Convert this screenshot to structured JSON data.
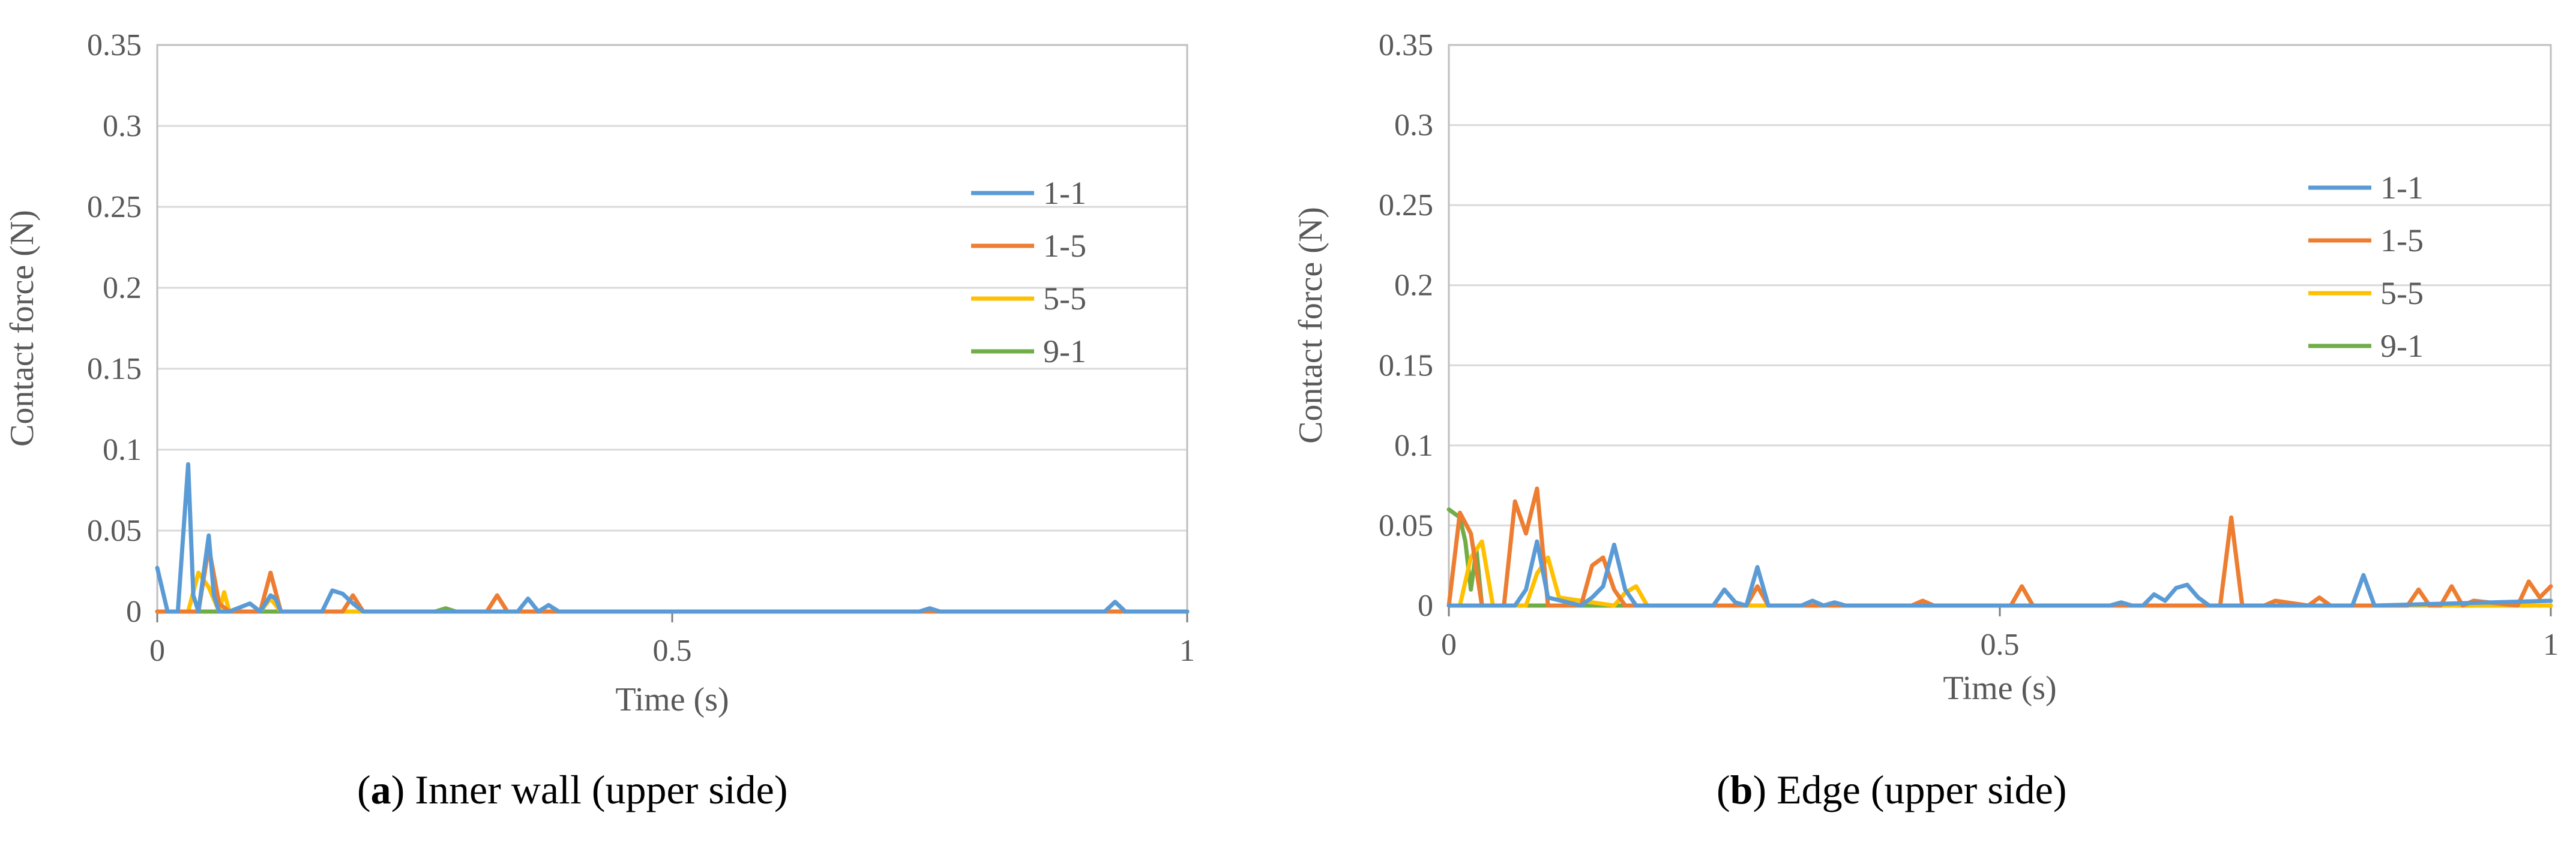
{
  "colors": {
    "1-1": "#5b9bd5",
    "1-5": "#ed7d31",
    "5-5": "#ffc000",
    "9-1": "#70ad47"
  },
  "chart_data": [
    {
      "type": "line",
      "caption_letter": "a",
      "caption_text": ") Inner wall (upper side)",
      "caption_open": "(",
      "xlabel": "Time (s)",
      "ylabel": "Contact force (N)",
      "xlim": [
        0,
        1
      ],
      "ylim": [
        0,
        0.35
      ],
      "xticks": [
        "0",
        "0.5",
        "1"
      ],
      "yticks": [
        "0",
        "0.05",
        "0.1",
        "0.15",
        "0.2",
        "0.25",
        "0.3",
        "0.35"
      ],
      "grid": "horizontal",
      "legend_position": "right",
      "series": [
        {
          "name": "1-1",
          "x": [
            0,
            0.01,
            0.02,
            0.03,
            0.035,
            0.04,
            0.05,
            0.055,
            0.06,
            0.07,
            0.09,
            0.1,
            0.11,
            0.115,
            0.12,
            0.13,
            0.16,
            0.17,
            0.18,
            0.19,
            0.2,
            0.35,
            0.36,
            0.37,
            0.38,
            0.39,
            0.74,
            0.75,
            0.76,
            0.92,
            0.93,
            0.94,
            1
          ],
          "y": [
            0.027,
            0,
            0,
            0.091,
            0.01,
            0,
            0.047,
            0.01,
            0,
            0,
            0.005,
            0,
            0.01,
            0.008,
            0,
            0,
            0,
            0.013,
            0.011,
            0.005,
            0,
            0,
            0.008,
            0,
            0.004,
            0,
            0,
            0.002,
            0,
            0,
            0.006,
            0,
            0
          ]
        },
        {
          "name": "1-5",
          "x": [
            0,
            0.04,
            0.05,
            0.06,
            0.07,
            0.1,
            0.11,
            0.12,
            0.13,
            0.18,
            0.19,
            0.2,
            0.32,
            0.33,
            0.34,
            1
          ],
          "y": [
            0,
            0,
            0.04,
            0.005,
            0,
            0,
            0.024,
            0,
            0,
            0,
            0.01,
            0,
            0,
            0.01,
            0,
            0
          ]
        },
        {
          "name": "5-5",
          "x": [
            0,
            0.03,
            0.04,
            0.05,
            0.06,
            0.065,
            0.07,
            0.08,
            0.1,
            0.11,
            0.12,
            1
          ],
          "y": [
            0,
            0,
            0.024,
            0.015,
            0,
            0.012,
            0,
            0,
            0,
            0.008,
            0,
            0
          ]
        },
        {
          "name": "9-1",
          "x": [
            0,
            0.27,
            0.28,
            0.29,
            1
          ],
          "y": [
            0,
            0,
            0.002,
            0,
            0
          ]
        }
      ]
    },
    {
      "type": "line",
      "caption_letter": "b",
      "caption_text": ") Edge (upper side)",
      "caption_open": "(",
      "xlabel": "Time (s)",
      "ylabel": "Contact force (N)",
      "xlim": [
        0,
        1
      ],
      "ylim": [
        0,
        0.35
      ],
      "xticks": [
        "0",
        "0.5",
        "1"
      ],
      "yticks": [
        "0",
        "0.05",
        "0.1",
        "0.15",
        "0.2",
        "0.25",
        "0.3",
        "0.35"
      ],
      "grid": "horizontal",
      "legend_position": "right",
      "series": [
        {
          "name": "1-1",
          "x": [
            0,
            0.06,
            0.07,
            0.08,
            0.09,
            0.12,
            0.13,
            0.14,
            0.15,
            0.16,
            0.17,
            0.24,
            0.25,
            0.26,
            0.27,
            0.28,
            0.29,
            0.32,
            0.33,
            0.34,
            0.35,
            0.36,
            0.5,
            0.6,
            0.61,
            0.62,
            0.63,
            0.64,
            0.65,
            0.66,
            0.67,
            0.68,
            0.69,
            0.7,
            0.8,
            0.82,
            0.83,
            0.84,
            1
          ],
          "y": [
            0,
            0,
            0.01,
            0.04,
            0.005,
            0,
            0.005,
            0.012,
            0.038,
            0.01,
            0,
            0,
            0.01,
            0.002,
            0,
            0.024,
            0,
            0,
            0.003,
            0,
            0.002,
            0,
            0,
            0,
            0.002,
            0,
            0,
            0.007,
            0.003,
            0.011,
            0.013,
            0.005,
            0,
            0,
            0,
            0,
            0.019,
            0,
            0.003
          ]
        },
        {
          "name": "1-5",
          "x": [
            0,
            0.01,
            0.02,
            0.03,
            0.05,
            0.06,
            0.07,
            0.08,
            0.09,
            0.12,
            0.13,
            0.14,
            0.15,
            0.16,
            0.27,
            0.28,
            0.29,
            0.42,
            0.43,
            0.44,
            0.51,
            0.52,
            0.53,
            0.54,
            0.69,
            0.7,
            0.71,
            0.72,
            0.73,
            0.74,
            0.75,
            0.78,
            0.79,
            0.8,
            0.86,
            0.87,
            0.88,
            0.89,
            0.9,
            0.91,
            0.92,
            0.93,
            0.97,
            0.98,
            0.99,
            1
          ],
          "y": [
            0,
            0.058,
            0.045,
            0,
            0,
            0.065,
            0.045,
            0.073,
            0,
            0,
            0.025,
            0.03,
            0.01,
            0,
            0,
            0.012,
            0,
            0,
            0.003,
            0,
            0,
            0.012,
            0,
            0,
            0,
            0,
            0.055,
            0,
            0,
            0,
            0.003,
            0,
            0.005,
            0,
            0,
            0,
            0.01,
            0,
            0,
            0.012,
            0,
            0.003,
            0,
            0.015,
            0.005,
            0.012
          ]
        },
        {
          "name": "5-5",
          "x": [
            0,
            0.01,
            0.02,
            0.03,
            0.04,
            0.07,
            0.08,
            0.09,
            0.1,
            0.15,
            0.16,
            0.17,
            0.18,
            0.42,
            0.43,
            0.44,
            1
          ],
          "y": [
            0,
            0,
            0.03,
            0.04,
            0,
            0,
            0.02,
            0.03,
            0.005,
            0,
            0.008,
            0.012,
            0,
            0,
            0.002,
            0,
            0
          ]
        },
        {
          "name": "9-1",
          "x": [
            0,
            0.01,
            0.015,
            0.02,
            0.025,
            0.03,
            1
          ],
          "y": [
            0.06,
            0.055,
            0.04,
            0.01,
            0.035,
            0,
            0
          ]
        }
      ]
    }
  ]
}
